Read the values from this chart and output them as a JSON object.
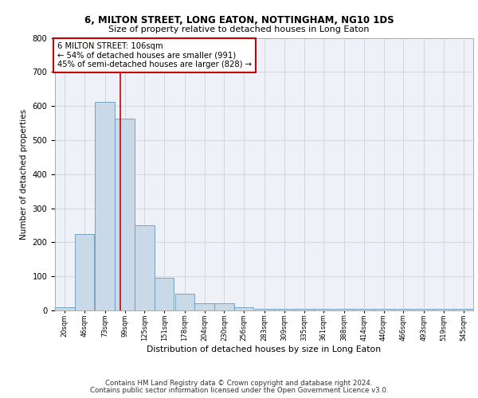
{
  "title_line1": "6, MILTON STREET, LONG EATON, NOTTINGHAM, NG10 1DS",
  "title_line2": "Size of property relative to detached houses in Long Eaton",
  "xlabel": "Distribution of detached houses by size in Long Eaton",
  "ylabel": "Number of detached properties",
  "annotation_line1": "6 MILTON STREET: 106sqm",
  "annotation_line2": "← 54% of detached houses are smaller (991)",
  "annotation_line3": "45% of semi-detached houses are larger (828) →",
  "property_size": 106,
  "bar_labels": [
    "20sqm",
    "46sqm",
    "73sqm",
    "99sqm",
    "125sqm",
    "151sqm",
    "178sqm",
    "204sqm",
    "230sqm",
    "256sqm",
    "283sqm",
    "309sqm",
    "335sqm",
    "361sqm",
    "388sqm",
    "414sqm",
    "440sqm",
    "466sqm",
    "493sqm",
    "519sqm",
    "545sqm"
  ],
  "bar_edges": [
    20,
    46,
    73,
    99,
    125,
    151,
    178,
    204,
    230,
    256,
    283,
    309,
    335,
    361,
    388,
    414,
    440,
    466,
    493,
    519,
    545
  ],
  "bar_heights": [
    10,
    224,
    612,
    562,
    250,
    95,
    48,
    22,
    22,
    10,
    5,
    5,
    5,
    5,
    5,
    5,
    5,
    5,
    5,
    5,
    5
  ],
  "bar_color_fill": "#c9d9e8",
  "bar_color_edge": "#6699bb",
  "vline_x": 106,
  "vline_color": "#cc0000",
  "annotation_box_color": "#cc0000",
  "grid_color": "#cccccc",
  "background_color": "#eef2f8",
  "footer_line1": "Contains HM Land Registry data © Crown copyright and database right 2024.",
  "footer_line2": "Contains public sector information licensed under the Open Government Licence v3.0.",
  "ylim": [
    0,
    800
  ],
  "yticks": [
    0,
    100,
    200,
    300,
    400,
    500,
    600,
    700,
    800
  ]
}
